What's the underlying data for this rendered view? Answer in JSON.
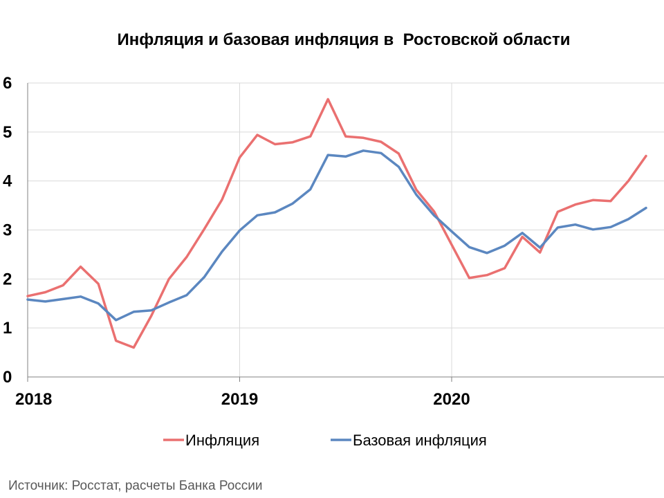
{
  "chart_data": {
    "type": "line",
    "title": "Инфляция и базовая инфляция в  Ростовской области",
    "xlabel": "",
    "ylabel": "",
    "ylim": [
      0,
      6
    ],
    "y_ticks": [
      "0",
      "1",
      "2",
      "3",
      "4",
      "5",
      "6"
    ],
    "x_ticks": [
      {
        "label": "2018",
        "month_index": 0
      },
      {
        "label": "2019",
        "month_index": 12
      },
      {
        "label": "2020",
        "month_index": 24
      }
    ],
    "x_range": [
      0,
      35
    ],
    "grid": true,
    "legend_position": "bottom",
    "series": [
      {
        "name": "Инфляция",
        "color": "#ea7070",
        "values": [
          1.65,
          1.73,
          1.87,
          2.25,
          1.9,
          0.74,
          0.6,
          1.25,
          2.0,
          2.45,
          3.02,
          3.62,
          4.48,
          4.94,
          4.75,
          4.79,
          4.91,
          5.67,
          4.91,
          4.88,
          4.8,
          4.56,
          3.82,
          3.38,
          2.7,
          2.02,
          2.08,
          2.22,
          2.86,
          2.54,
          3.37,
          3.52,
          3.61,
          3.59,
          4.0,
          4.51
        ]
      },
      {
        "name": "Базовая инфляция",
        "color": "#5b87c0",
        "values": [
          1.58,
          1.54,
          1.59,
          1.64,
          1.5,
          1.16,
          1.33,
          1.36,
          1.52,
          1.67,
          2.04,
          2.56,
          2.99,
          3.3,
          3.36,
          3.54,
          3.83,
          4.53,
          4.5,
          4.62,
          4.57,
          4.29,
          3.72,
          3.3,
          2.97,
          2.65,
          2.53,
          2.68,
          2.94,
          2.64,
          3.05,
          3.11,
          3.01,
          3.06,
          3.22,
          3.45
        ]
      }
    ]
  },
  "source_note": "Источник: Росстат, расчеты Банка России"
}
